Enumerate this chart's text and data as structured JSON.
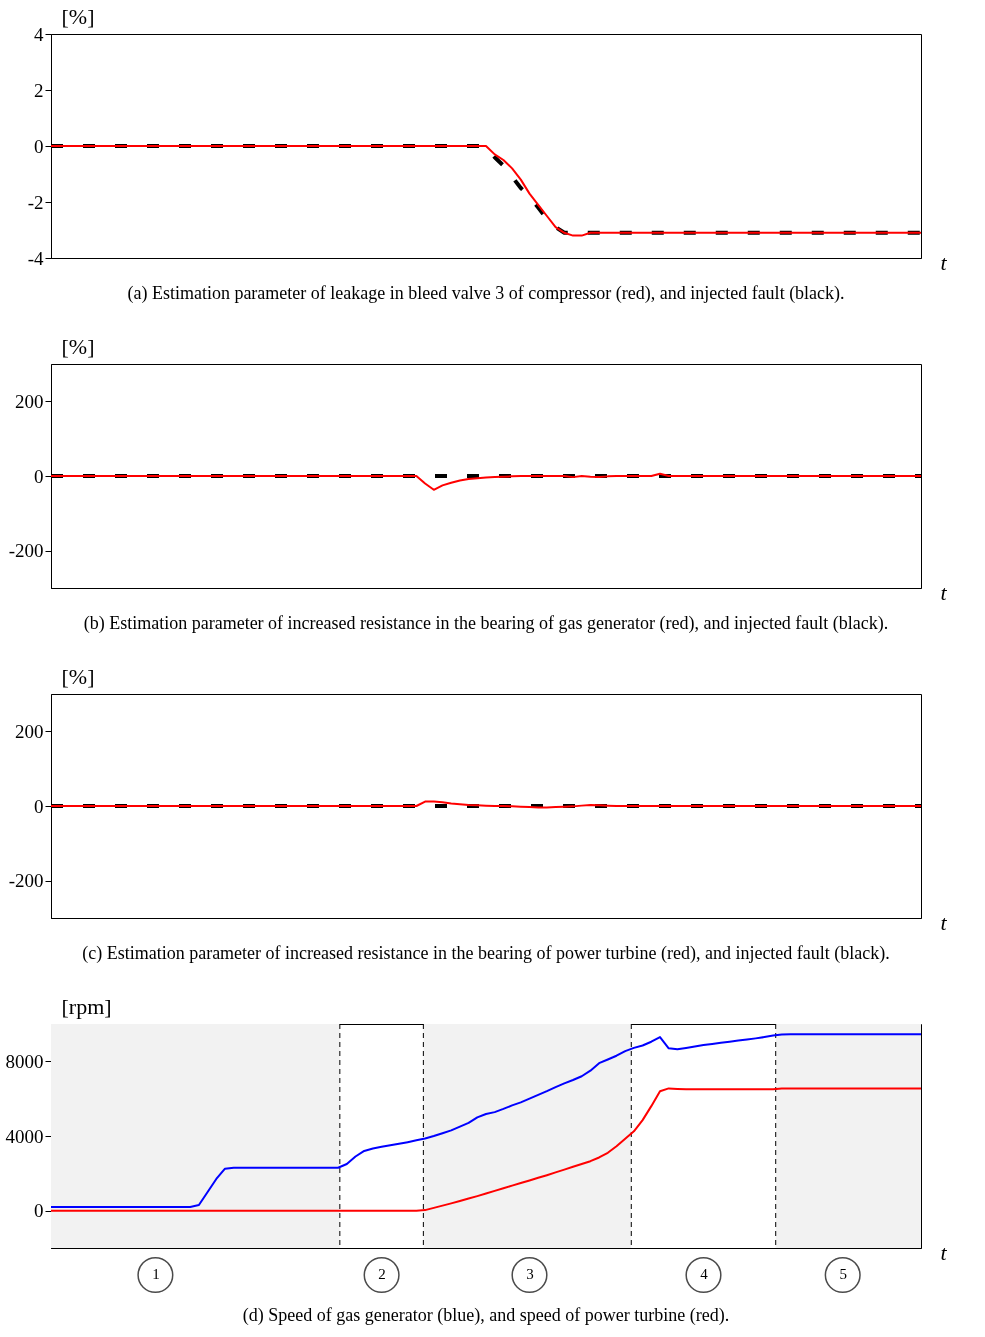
{
  "chart_data": [
    {
      "type": "line",
      "ylabel": "[%]",
      "xlabel": "t",
      "annotations": [
        "(a) Estimation parameter of leakage in bleed valve 3 of compressor (red), and injected fault (black)."
      ],
      "ylim": [
        -4,
        4
      ],
      "yticks": [
        -4,
        -2,
        0,
        2,
        4
      ],
      "tick_labels": "y",
      "grid": false,
      "categories": [
        null,
        null,
        null,
        null,
        null,
        null,
        null,
        null,
        null,
        null,
        null,
        null,
        null,
        null,
        null,
        null,
        null,
        null,
        null,
        null,
        null,
        null,
        null,
        null,
        null,
        null,
        null,
        null,
        null,
        null,
        null,
        null,
        null,
        null,
        null,
        null,
        null,
        null,
        null,
        null,
        null,
        null,
        null,
        null,
        null,
        null,
        null,
        null,
        null,
        null,
        null,
        null,
        null,
        null,
        null,
        null,
        null,
        null,
        null,
        null,
        null,
        null,
        null,
        null,
        null,
        null,
        null,
        null,
        null,
        null,
        null,
        null,
        null,
        null,
        null,
        null,
        null,
        null,
        null,
        null,
        null,
        null,
        null,
        null,
        null,
        null,
        null,
        null,
        null,
        null,
        null,
        null,
        null,
        null,
        null,
        null,
        null,
        null,
        null,
        null,
        null
      ],
      "series": [
        {
          "color": "#000000",
          "line_style": "dashed",
          "values": [
            0,
            0,
            0,
            0,
            0,
            0,
            0,
            0,
            0,
            0,
            0,
            0,
            0,
            0,
            0,
            0,
            0,
            0,
            0,
            0,
            0,
            0,
            0,
            0,
            0,
            0,
            0,
            0,
            0,
            0,
            0,
            0,
            0,
            0,
            0,
            0,
            0,
            0,
            0,
            0,
            0,
            0,
            0,
            0,
            0,
            0,
            0,
            0,
            0,
            0,
            0,
            -0.4,
            -0.7,
            -1.1,
            -1.5,
            -1.8,
            -2.2,
            -2.6,
            -2.9,
            -3.1,
            -3.1,
            -3.1,
            -3.1,
            -3.1,
            -3.1,
            -3.1,
            -3.1,
            -3.1,
            -3.1,
            -3.1,
            -3.1,
            -3.1,
            -3.1,
            -3.1,
            -3.1,
            -3.1,
            -3.1,
            -3.1,
            -3.1,
            -3.1,
            -3.1,
            -3.1,
            -3.1,
            -3.1,
            -3.1,
            -3.1,
            -3.1,
            -3.1,
            -3.1,
            -3.1,
            -3.1,
            -3.1,
            -3.1,
            -3.1,
            -3.1,
            -3.1,
            -3.1,
            -3.1,
            -3.1,
            -3.1,
            -3.1
          ]
        },
        {
          "color": "#ff0000",
          "line_style": "solid",
          "values": [
            0,
            0,
            0,
            0,
            0,
            0,
            0,
            0,
            0,
            0,
            0,
            0,
            0,
            0,
            0,
            0,
            0,
            0,
            0,
            0,
            0,
            0,
            0,
            0,
            0,
            0,
            0,
            0,
            0,
            0,
            0,
            0,
            0,
            0,
            0,
            0,
            0,
            0,
            0,
            0,
            0,
            0,
            0,
            0,
            0,
            0,
            0,
            0,
            0,
            0,
            0,
            -0.3,
            -0.5,
            -0.8,
            -1.2,
            -1.7,
            -2.1,
            -2.5,
            -2.9,
            -3.1,
            -3.2,
            -3.2,
            -3.1,
            -3.1,
            -3.1,
            -3.1,
            -3.1,
            -3.1,
            -3.1,
            -3.1,
            -3.1,
            -3.1,
            -3.1,
            -3.1,
            -3.1,
            -3.1,
            -3.1,
            -3.1,
            -3.1,
            -3.1,
            -3.1,
            -3.1,
            -3.1,
            -3.1,
            -3.1,
            -3.1,
            -3.1,
            -3.1,
            -3.1,
            -3.1,
            -3.1,
            -3.1,
            -3.1,
            -3.1,
            -3.1,
            -3.1,
            -3.1,
            -3.1,
            -3.1,
            -3.1,
            -3.1
          ]
        }
      ]
    },
    {
      "type": "line",
      "ylabel": "[%]",
      "xlabel": "t",
      "annotations": [
        "(b) Estimation parameter of increased resistance in the bearing of gas generator (red), and injected fault (black)."
      ],
      "ylim": [
        -300,
        300
      ],
      "yticks": [
        -200,
        0,
        200
      ],
      "tick_labels": "y",
      "grid": false,
      "categories": [
        null,
        null,
        null,
        null,
        null,
        null,
        null,
        null,
        null,
        null,
        null,
        null,
        null,
        null,
        null,
        null,
        null,
        null,
        null,
        null,
        null,
        null,
        null,
        null,
        null,
        null,
        null,
        null,
        null,
        null,
        null,
        null,
        null,
        null,
        null,
        null,
        null,
        null,
        null,
        null,
        null,
        null,
        null,
        null,
        null,
        null,
        null,
        null,
        null,
        null,
        null,
        null,
        null,
        null,
        null,
        null,
        null,
        null,
        null,
        null,
        null,
        null,
        null,
        null,
        null,
        null,
        null,
        null,
        null,
        null,
        null,
        null,
        null,
        null,
        null,
        null,
        null,
        null,
        null,
        null,
        null,
        null,
        null,
        null,
        null,
        null,
        null,
        null,
        null,
        null,
        null,
        null,
        null,
        null,
        null,
        null,
        null,
        null,
        null,
        null,
        null
      ],
      "series": [
        {
          "color": "#000000",
          "line_style": "dashed",
          "values": [
            0,
            0,
            0,
            0,
            0,
            0,
            0,
            0,
            0,
            0,
            0,
            0,
            0,
            0,
            0,
            0,
            0,
            0,
            0,
            0,
            0,
            0,
            0,
            0,
            0,
            0,
            0,
            0,
            0,
            0,
            0,
            0,
            0,
            0,
            0,
            0,
            0,
            0,
            0,
            0,
            0,
            0,
            0,
            0,
            0,
            0,
            0,
            0,
            0,
            0,
            0,
            0,
            0,
            0,
            0,
            0,
            0,
            0,
            0,
            0,
            0,
            0,
            0,
            0,
            0,
            0,
            0,
            0,
            0,
            0,
            0,
            0,
            0,
            0,
            0,
            0,
            0,
            0,
            0,
            0,
            0,
            0,
            0,
            0,
            0,
            0,
            0,
            0,
            0,
            0,
            0,
            0,
            0,
            0,
            0,
            0,
            0,
            0,
            0,
            0,
            0
          ]
        },
        {
          "color": "#ff0000",
          "line_style": "solid",
          "values": [
            0,
            0,
            0,
            0,
            0,
            0,
            0,
            0,
            0,
            0,
            0,
            0,
            0,
            0,
            0,
            0,
            0,
            0,
            0,
            0,
            0,
            0,
            0,
            0,
            0,
            0,
            0,
            0,
            0,
            0,
            0,
            0,
            0,
            0,
            0,
            0,
            0,
            0,
            0,
            0,
            0,
            0,
            0,
            -20,
            -37,
            -25,
            -18,
            -12,
            -8,
            -6,
            -4,
            -3,
            -2,
            -1,
            0,
            0,
            0,
            0,
            0,
            0,
            -3,
            0,
            -2,
            -3,
            -1,
            0,
            0,
            0,
            0,
            0,
            6,
            0,
            0,
            0,
            0,
            0,
            0,
            0,
            0,
            0,
            0,
            0,
            0,
            0,
            0,
            0,
            0,
            0,
            0,
            0,
            0,
            0,
            0,
            0,
            0,
            0,
            0,
            0,
            0,
            0,
            0
          ]
        }
      ]
    },
    {
      "type": "line",
      "ylabel": "[%]",
      "xlabel": "t",
      "annotations": [
        "(c) Estimation parameter of increased resistance in the bearing of power turbine (red), and injected fault (black)."
      ],
      "ylim": [
        -300,
        300
      ],
      "yticks": [
        -200,
        0,
        200
      ],
      "tick_labels": "y",
      "grid": false,
      "categories": [
        null,
        null,
        null,
        null,
        null,
        null,
        null,
        null,
        null,
        null,
        null,
        null,
        null,
        null,
        null,
        null,
        null,
        null,
        null,
        null,
        null,
        null,
        null,
        null,
        null,
        null,
        null,
        null,
        null,
        null,
        null,
        null,
        null,
        null,
        null,
        null,
        null,
        null,
        null,
        null,
        null,
        null,
        null,
        null,
        null,
        null,
        null,
        null,
        null,
        null,
        null,
        null,
        null,
        null,
        null,
        null,
        null,
        null,
        null,
        null,
        null,
        null,
        null,
        null,
        null,
        null,
        null,
        null,
        null,
        null,
        null,
        null,
        null,
        null,
        null,
        null,
        null,
        null,
        null,
        null,
        null,
        null,
        null,
        null,
        null,
        null,
        null,
        null,
        null,
        null,
        null,
        null,
        null,
        null,
        null,
        null,
        null,
        null,
        null,
        null,
        null
      ],
      "series": [
        {
          "color": "#000000",
          "line_style": "dashed",
          "values": [
            0,
            0,
            0,
            0,
            0,
            0,
            0,
            0,
            0,
            0,
            0,
            0,
            0,
            0,
            0,
            0,
            0,
            0,
            0,
            0,
            0,
            0,
            0,
            0,
            0,
            0,
            0,
            0,
            0,
            0,
            0,
            0,
            0,
            0,
            0,
            0,
            0,
            0,
            0,
            0,
            0,
            0,
            0,
            0,
            0,
            0,
            0,
            0,
            0,
            0,
            0,
            0,
            0,
            0,
            0,
            0,
            0,
            0,
            0,
            0,
            0,
            0,
            0,
            0,
            0,
            0,
            0,
            0,
            0,
            0,
            0,
            0,
            0,
            0,
            0,
            0,
            0,
            0,
            0,
            0,
            0,
            0,
            0,
            0,
            0,
            0,
            0,
            0,
            0,
            0,
            0,
            0,
            0,
            0,
            0,
            0,
            0,
            0,
            0,
            0,
            0
          ]
        },
        {
          "color": "#ff0000",
          "line_style": "solid",
          "values": [
            0,
            0,
            0,
            0,
            0,
            0,
            0,
            0,
            0,
            0,
            0,
            0,
            0,
            0,
            0,
            0,
            0,
            0,
            0,
            0,
            0,
            0,
            0,
            0,
            0,
            0,
            0,
            0,
            0,
            0,
            0,
            0,
            0,
            0,
            0,
            0,
            0,
            0,
            0,
            0,
            0,
            0,
            0,
            12,
            12,
            10,
            7,
            5,
            3,
            2,
            1,
            0,
            0,
            -1,
            -2,
            -3,
            -4,
            -4,
            -3,
            -2,
            -1,
            1,
            3,
            2,
            1,
            0,
            0,
            0,
            0,
            0,
            0,
            0,
            0,
            0,
            0,
            0,
            0,
            0,
            0,
            0,
            0,
            0,
            0,
            0,
            0,
            0,
            0,
            0,
            0,
            0,
            0,
            0,
            0,
            0,
            0,
            0,
            0,
            0,
            0,
            0,
            0
          ]
        }
      ]
    },
    {
      "type": "line",
      "ylabel": "[rpm]",
      "xlabel": "t",
      "annotations": [
        "(d) Speed of gas generator (blue), and speed of power turbine (red)."
      ],
      "ylim": [
        -2000,
        10000
      ],
      "yticks": [
        0,
        4000,
        8000
      ],
      "grid": false,
      "categories": [
        null,
        null,
        null,
        null,
        null,
        null,
        null,
        null,
        null,
        null,
        null,
        null,
        "1",
        null,
        null,
        null,
        null,
        null,
        null,
        null,
        null,
        null,
        null,
        null,
        null,
        null,
        null,
        null,
        null,
        null,
        null,
        null,
        null,
        null,
        null,
        null,
        null,
        null,
        "2",
        null,
        null,
        null,
        null,
        null,
        null,
        null,
        null,
        null,
        null,
        null,
        null,
        null,
        null,
        null,
        null,
        "3",
        null,
        null,
        null,
        null,
        null,
        null,
        null,
        null,
        null,
        null,
        null,
        null,
        null,
        null,
        null,
        null,
        null,
        null,
        null,
        "4",
        null,
        null,
        null,
        null,
        null,
        null,
        null,
        null,
        null,
        null,
        null,
        null,
        null,
        null,
        null,
        "5",
        null,
        null,
        null,
        null,
        null,
        null,
        null,
        null,
        null
      ],
      "series": [
        {
          "color": "#0000ff",
          "line_style": "solid",
          "values": [
            200,
            200,
            200,
            200,
            200,
            200,
            200,
            200,
            200,
            200,
            200,
            200,
            200,
            200,
            200,
            200,
            200,
            300,
            1000,
            1700,
            2250,
            2300,
            2300,
            2300,
            2300,
            2300,
            2300,
            2300,
            2300,
            2300,
            2300,
            2300,
            2300,
            2300,
            2500,
            2900,
            3200,
            3330,
            3420,
            3500,
            3580,
            3670,
            3770,
            3870,
            4000,
            4150,
            4300,
            4500,
            4700,
            5000,
            5180,
            5280,
            5450,
            5640,
            5800,
            6000,
            6200,
            6400,
            6620,
            6820,
            7000,
            7200,
            7500,
            7900,
            8100,
            8300,
            8550,
            8720,
            8850,
            9050,
            9300,
            8700,
            8650,
            8720,
            8800,
            8870,
            8930,
            8990,
            9050,
            9110,
            9170,
            9230,
            9300,
            9380,
            9440,
            9450,
            9450,
            9450,
            9450,
            9450,
            9450,
            9450,
            9450,
            9450,
            9450,
            9450,
            9450,
            9450,
            9450,
            9450,
            9450
          ]
        },
        {
          "color": "#ff0000",
          "line_style": "solid",
          "values": [
            0,
            0,
            0,
            0,
            0,
            0,
            0,
            0,
            0,
            0,
            0,
            0,
            0,
            0,
            0,
            0,
            0,
            0,
            0,
            0,
            0,
            0,
            0,
            0,
            0,
            0,
            0,
            0,
            0,
            0,
            0,
            0,
            0,
            0,
            0,
            0,
            0,
            0,
            0,
            0,
            0,
            0,
            0,
            30,
            150,
            270,
            390,
            520,
            650,
            780,
            920,
            1060,
            1200,
            1340,
            1480,
            1620,
            1760,
            1900,
            2050,
            2200,
            2350,
            2500,
            2650,
            2850,
            3100,
            3450,
            3850,
            4250,
            4850,
            5600,
            6400,
            6550,
            6520,
            6500,
            6500,
            6500,
            6500,
            6500,
            6500,
            6500,
            6500,
            6500,
            6500,
            6500,
            6550,
            6550,
            6550,
            6550,
            6550,
            6550,
            6550,
            6550,
            6550,
            6550,
            6550,
            6550,
            6550,
            6550,
            6550,
            6550,
            6550
          ]
        }
      ]
    }
  ]
}
